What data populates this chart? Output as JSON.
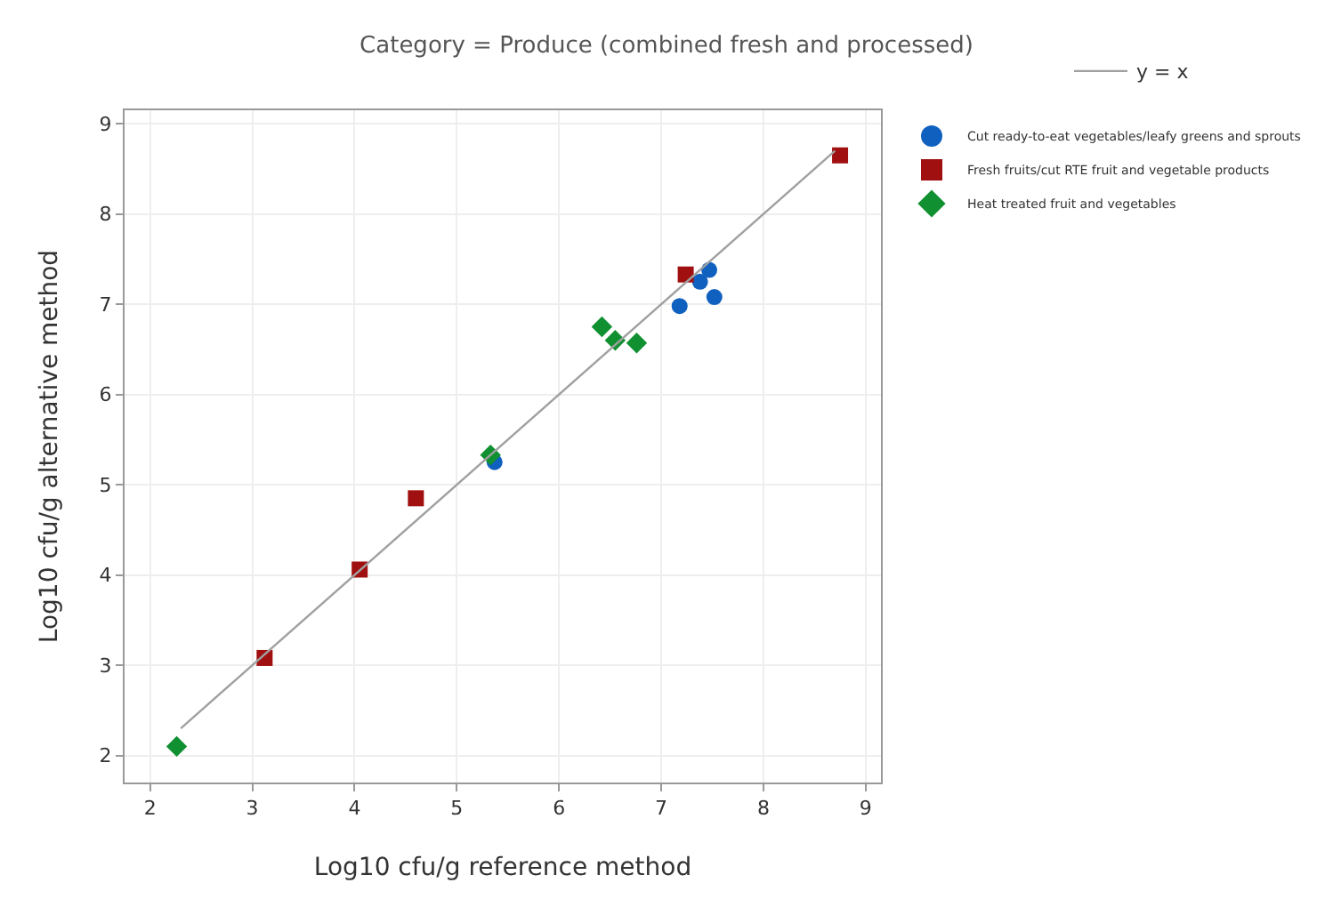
{
  "chart_data": {
    "type": "scatter",
    "title": "Category = Produce (combined fresh and processed)",
    "xlabel": "Log10 cfu/g reference method",
    "ylabel": "Log10 cfu/g alternative method",
    "xlim": [
      1.75,
      9.15
    ],
    "ylim": [
      1.7,
      9.15
    ],
    "xticks": [
      2,
      3,
      4,
      5,
      6,
      7,
      8,
      9
    ],
    "yticks": [
      2,
      3,
      4,
      5,
      6,
      7,
      8,
      9
    ],
    "grid": true,
    "legend": "right",
    "series": [
      {
        "name": "Cut ready-to-eat vegetables/leafy greens and sprouts",
        "color": "#1060c0",
        "marker": "circle",
        "x": [
          5.37,
          7.18,
          7.38,
          7.47,
          7.52
        ],
        "values": [
          5.25,
          6.98,
          7.25,
          7.38,
          7.08
        ]
      },
      {
        "name": "Fresh fruits/cut RTE fruit and vegetable products",
        "color": "#a01010",
        "marker": "square",
        "x": [
          3.12,
          4.05,
          4.6,
          7.24,
          8.75
        ],
        "values": [
          3.08,
          4.06,
          4.85,
          7.33,
          8.65
        ]
      },
      {
        "name": "Heat treated fruit and vegetables",
        "color": "#109030",
        "marker": "diamond",
        "x": [
          2.26,
          5.33,
          6.42,
          6.55,
          6.76
        ],
        "values": [
          2.1,
          5.33,
          6.75,
          6.6,
          6.57
        ]
      },
      {
        "name": "y = x",
        "type": "line",
        "color": "#a0a0a0",
        "marker": "none",
        "x": [
          8.7,
          2.3
        ],
        "values": [
          8.7,
          2.3
        ]
      }
    ]
  }
}
